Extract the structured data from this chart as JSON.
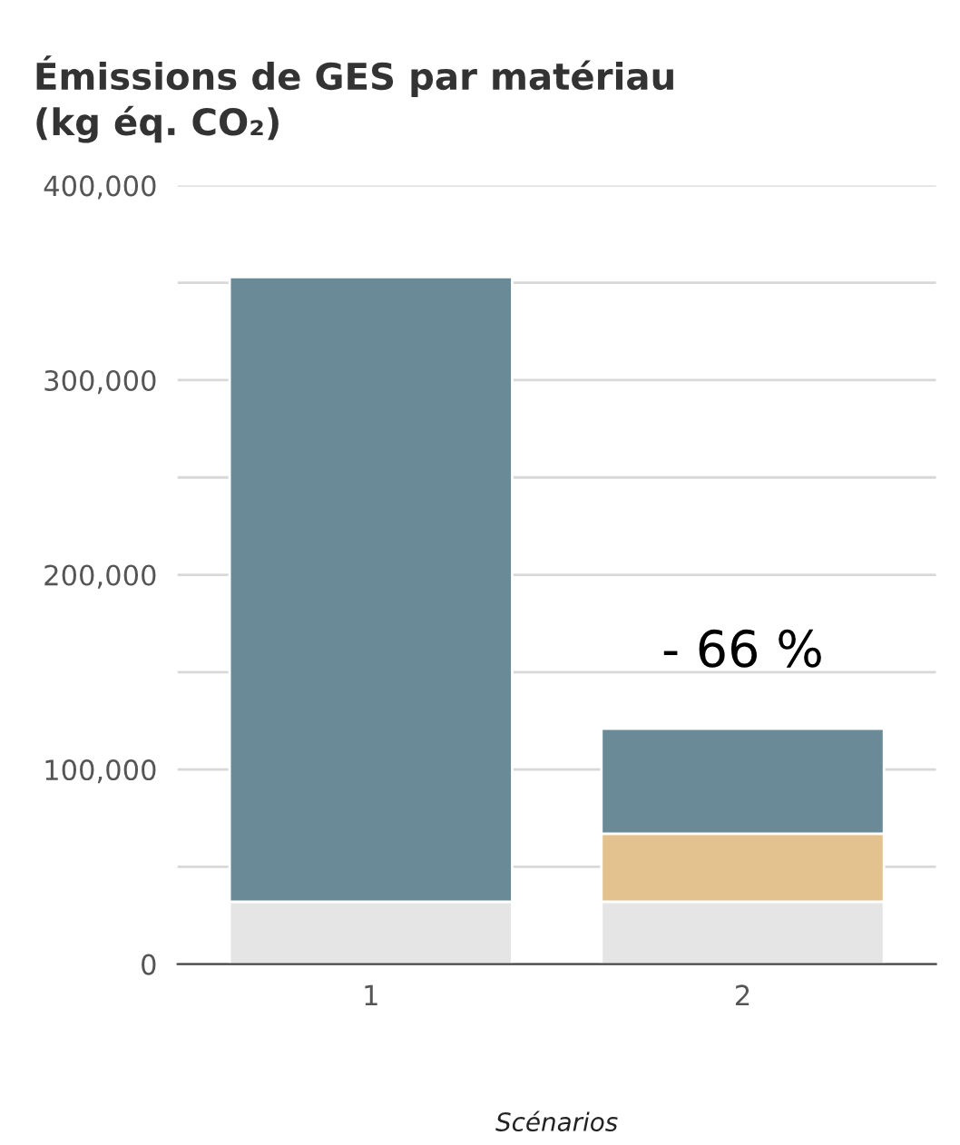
{
  "chart_data": {
    "type": "bar",
    "title": "Émissions de GES par matériau\n(kg éq. CO₂)",
    "xlabel": "Scénarios",
    "categories": [
      "1",
      "2"
    ],
    "stacked": true,
    "series": [
      {
        "color": "#e5e5e5",
        "values": [
          32000,
          32000
        ]
      },
      {
        "color": "#e3c28f",
        "values": [
          0,
          35000
        ]
      },
      {
        "color": "#6a8a98",
        "values": [
          321000,
          54000
        ]
      }
    ],
    "ylim": [
      0,
      400000
    ],
    "yticks": [
      {
        "value": 0,
        "label": "0"
      },
      {
        "value": 50000,
        "label": null
      },
      {
        "value": 100000,
        "label": "100,000"
      },
      {
        "value": 150000,
        "label": null
      },
      {
        "value": 200000,
        "label": "200,000"
      },
      {
        "value": 250000,
        "label": null
      },
      {
        "value": 300000,
        "label": "300,000"
      },
      {
        "value": 350000,
        "label": null
      },
      {
        "value": 400000,
        "label": "400,000"
      }
    ],
    "grid": "y",
    "legend": false,
    "annotations": [
      "- 66 %"
    ]
  }
}
